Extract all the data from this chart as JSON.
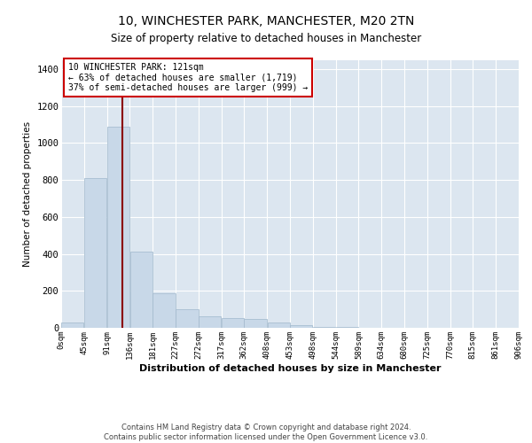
{
  "title": "10, WINCHESTER PARK, MANCHESTER, M20 2TN",
  "subtitle": "Size of property relative to detached houses in Manchester",
  "xlabel": "Distribution of detached houses by size in Manchester",
  "ylabel": "Number of detached properties",
  "bar_color": "#c8d8e8",
  "bar_edgecolor": "#a0b8cc",
  "vline_x": 121,
  "vline_color": "#8b0000",
  "annotation_lines": [
    "10 WINCHESTER PARK: 121sqm",
    "← 63% of detached houses are smaller (1,719)",
    "37% of semi-detached houses are larger (999) →"
  ],
  "bin_edges": [
    0,
    45,
    91,
    136,
    181,
    227,
    272,
    317,
    362,
    408,
    453,
    498,
    544,
    589,
    634,
    680,
    725,
    770,
    815,
    861,
    906
  ],
  "counts": [
    30,
    810,
    1090,
    410,
    185,
    100,
    60,
    55,
    50,
    30,
    15,
    5,
    5,
    0,
    0,
    0,
    0,
    0,
    0,
    0
  ],
  "ylim": [
    0,
    1450
  ],
  "yticks": [
    0,
    200,
    400,
    600,
    800,
    1000,
    1200,
    1400
  ],
  "footer_line1": "Contains HM Land Registry data © Crown copyright and database right 2024.",
  "footer_line2": "Contains public sector information licensed under the Open Government Licence v3.0.",
  "background_color": "#ffffff",
  "plot_bg_color": "#dce6f0"
}
